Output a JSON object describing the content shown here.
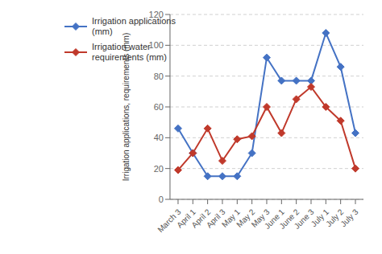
{
  "chart_data": {
    "type": "line",
    "categories": [
      "March 3",
      "April 1",
      "April 2",
      "April 3",
      "May 1",
      "May 2",
      "May 3",
      "June 1",
      "June 2",
      "June 3",
      "July 1",
      "July 2",
      "July 3"
    ],
    "series": [
      {
        "name": "Irrigation applications\n(mm)",
        "color": "#4472C4",
        "marker": "diamond",
        "values": [
          46,
          30,
          15,
          15,
          15,
          30,
          92,
          77,
          77,
          77,
          108,
          86,
          43
        ]
      },
      {
        "name": "Irrigation water\nrequirements (mm)",
        "color": "#C0392B",
        "marker": "diamond",
        "values": [
          19,
          30,
          46,
          25,
          39,
          41,
          60,
          43,
          65,
          73,
          60,
          51,
          20
        ]
      }
    ],
    "y_label": "Irrigation applications, requirements (mm)",
    "ylim": [
      0,
      120
    ],
    "yticks": [
      0,
      20,
      40,
      60,
      80,
      100,
      120
    ],
    "grid": true,
    "legend": "upper left"
  }
}
